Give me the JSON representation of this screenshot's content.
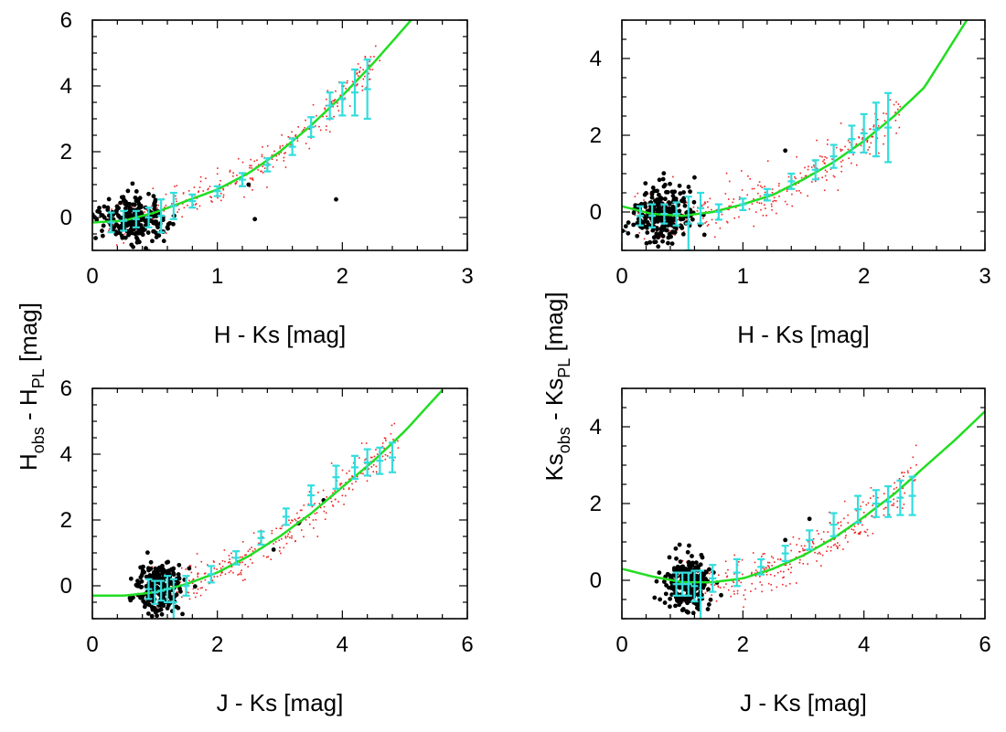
{
  "figure": {
    "ylabel_left": {
      "main1": "H",
      "sub1": "obs",
      "main2": " - H",
      "sub2": "PL",
      "main3": " [mag]"
    },
    "ylabel_right": {
      "main1": "Ks",
      "sub1": "obs",
      "main2": " - Ks",
      "sub2": "PL",
      "main3": " [mag]"
    }
  },
  "colors": {
    "frame": "#000000",
    "fit_curve": "#22dd22",
    "binned_errorbars": "#33dddd",
    "red_points": "#ee2222",
    "black_points": "#000000"
  },
  "chart_data": [
    {
      "id": "top-left",
      "type": "scatter",
      "xlabel": "H - Ks [mag]",
      "ylabel": "H_obs - H_PL [mag]",
      "xlim": [
        0,
        3
      ],
      "ylim": [
        -1,
        6
      ],
      "xticks": [
        0,
        1,
        2,
        3
      ],
      "yticks": [
        0,
        2,
        4,
        6
      ],
      "tick_labels_x": [
        "0",
        "1",
        "2",
        "3"
      ],
      "tick_labels_y": [
        "0",
        "2",
        "4",
        "6"
      ],
      "grid": false,
      "fit_curve": {
        "x": [
          0,
          0.25,
          0.5,
          0.75,
          1.0,
          1.25,
          1.5,
          1.75,
          2.0,
          2.25,
          2.55
        ],
        "y": [
          -0.15,
          -0.1,
          0.15,
          0.5,
          0.85,
          1.35,
          2.0,
          2.8,
          3.7,
          4.7,
          6.0
        ]
      },
      "binned": {
        "x": [
          0.15,
          0.25,
          0.35,
          0.45,
          0.55,
          0.65,
          0.8,
          1.0,
          1.2,
          1.4,
          1.6,
          1.75,
          1.9,
          2.0,
          2.1,
          2.2
        ],
        "y": [
          -0.15,
          -0.1,
          -0.05,
          0.0,
          0.05,
          0.35,
          0.5,
          0.8,
          1.15,
          1.6,
          2.15,
          2.75,
          3.4,
          3.6,
          3.8,
          3.9
        ],
        "err": [
          0.3,
          0.3,
          0.25,
          0.3,
          0.5,
          0.4,
          0.2,
          0.15,
          0.2,
          0.2,
          0.25,
          0.3,
          0.4,
          0.5,
          0.7,
          0.9
        ]
      },
      "red_scatter": {
        "x_range": [
          0.1,
          2.3
        ],
        "spread": 0.35,
        "count": 320
      },
      "black_cluster": {
        "x_range": [
          0.1,
          0.55
        ],
        "y_range": [
          -1.0,
          0.7
        ],
        "count": 240
      },
      "black_outliers": {
        "x": [
          1.3,
          1.95,
          1.25,
          0.6
        ],
        "y": [
          -0.05,
          0.55,
          1.0,
          -0.3
        ]
      }
    },
    {
      "id": "top-right",
      "type": "scatter",
      "xlabel": "H - Ks [mag]",
      "ylabel": "Ks_obs - Ks_PL [mag]",
      "xlim": [
        0,
        3
      ],
      "ylim": [
        -1,
        5
      ],
      "xticks": [
        0,
        1,
        2,
        3
      ],
      "yticks": [
        0,
        2,
        4
      ],
      "tick_labels_x": [
        "0",
        "1",
        "2",
        "3"
      ],
      "tick_labels_y": [
        "0",
        "2",
        "4"
      ],
      "grid": false,
      "fit_curve": {
        "x": [
          0,
          0.25,
          0.5,
          0.75,
          1.0,
          1.25,
          1.5,
          1.75,
          2.0,
          2.25,
          2.5,
          2.85
        ],
        "y": [
          0.15,
          -0.05,
          -0.1,
          0.0,
          0.2,
          0.45,
          0.85,
          1.3,
          1.85,
          2.5,
          3.25,
          5.0
        ]
      },
      "binned": {
        "x": [
          0.15,
          0.25,
          0.35,
          0.45,
          0.55,
          0.65,
          0.8,
          1.0,
          1.2,
          1.4,
          1.6,
          1.75,
          1.9,
          2.0,
          2.1,
          2.2
        ],
        "y": [
          -0.1,
          -0.1,
          -0.05,
          -0.05,
          -0.3,
          0.1,
          0.0,
          0.2,
          0.45,
          0.8,
          1.1,
          1.45,
          1.9,
          2.05,
          2.15,
          2.2
        ],
        "err": [
          0.25,
          0.3,
          0.25,
          0.3,
          0.7,
          0.4,
          0.2,
          0.15,
          0.15,
          0.2,
          0.25,
          0.3,
          0.35,
          0.5,
          0.7,
          0.9
        ]
      },
      "red_scatter": {
        "x_range": [
          0.1,
          2.3
        ],
        "spread": 0.35,
        "count": 320
      },
      "black_cluster": {
        "x_range": [
          0.1,
          0.55
        ],
        "y_range": [
          -1.0,
          0.7
        ],
        "count": 240
      },
      "black_outliers": {
        "x": [
          1.35,
          0.6,
          0.3
        ],
        "y": [
          1.6,
          0.9,
          -0.9
        ]
      }
    },
    {
      "id": "bottom-left",
      "type": "scatter",
      "xlabel": "J - Ks [mag]",
      "ylabel": "H_obs - H_PL [mag]",
      "xlim": [
        0,
        6
      ],
      "ylim": [
        -1,
        6
      ],
      "xticks": [
        0,
        2,
        4,
        6
      ],
      "yticks": [
        0,
        2,
        4,
        6
      ],
      "tick_labels_x": [
        "0",
        "2",
        "4",
        "6"
      ],
      "tick_labels_y": [
        "0",
        "2",
        "4",
        "6"
      ],
      "grid": false,
      "fit_curve": {
        "x": [
          0,
          0.5,
          1.0,
          1.5,
          2.0,
          2.5,
          3.0,
          3.5,
          4.0,
          4.5,
          5.0,
          5.6
        ],
        "y": [
          -0.3,
          -0.3,
          -0.2,
          0.05,
          0.4,
          0.9,
          1.5,
          2.2,
          3.0,
          3.8,
          4.7,
          5.95
        ]
      },
      "binned": {
        "x": [
          0.9,
          1.0,
          1.1,
          1.2,
          1.3,
          1.5,
          1.9,
          2.3,
          2.7,
          3.1,
          3.5,
          3.9,
          4.2,
          4.4,
          4.6,
          4.8
        ],
        "y": [
          -0.1,
          -0.2,
          -0.15,
          -0.1,
          -0.5,
          0.0,
          0.35,
          0.85,
          1.45,
          2.1,
          2.75,
          3.3,
          3.6,
          3.75,
          3.8,
          3.9
        ],
        "err": [
          0.3,
          0.35,
          0.3,
          0.4,
          0.7,
          0.3,
          0.25,
          0.2,
          0.2,
          0.25,
          0.3,
          0.35,
          0.35,
          0.4,
          0.4,
          0.45
        ]
      },
      "red_scatter": {
        "x_range": [
          0.9,
          4.9
        ],
        "spread": 0.35,
        "count": 320
      },
      "black_cluster": {
        "x_range": [
          0.75,
          1.4
        ],
        "y_range": [
          -1.0,
          0.75
        ],
        "count": 240
      },
      "black_outliers": {
        "x": [
          2.9,
          3.3,
          3.7
        ],
        "y": [
          1.1,
          1.9,
          2.6
        ]
      }
    },
    {
      "id": "bottom-right",
      "type": "scatter",
      "xlabel": "J - Ks [mag]",
      "ylabel": "Ks_obs - Ks_PL [mag]",
      "xlim": [
        0,
        6
      ],
      "ylim": [
        -1,
        5
      ],
      "xticks": [
        0,
        2,
        4,
        6
      ],
      "yticks": [
        0,
        2,
        4
      ],
      "tick_labels_x": [
        "0",
        "2",
        "4",
        "6"
      ],
      "tick_labels_y": [
        "0",
        "2",
        "4"
      ],
      "grid": false,
      "fit_curve": {
        "x": [
          0,
          0.5,
          1.0,
          1.5,
          2.0,
          2.5,
          3.0,
          3.5,
          4.0,
          4.5,
          5.0,
          5.5,
          6.0
        ],
        "y": [
          0.3,
          0.1,
          -0.05,
          -0.05,
          0.05,
          0.3,
          0.65,
          1.1,
          1.65,
          2.25,
          2.95,
          3.65,
          4.4
        ]
      },
      "binned": {
        "x": [
          0.9,
          1.0,
          1.1,
          1.2,
          1.3,
          1.5,
          1.9,
          2.3,
          2.7,
          3.1,
          3.5,
          3.9,
          4.2,
          4.4,
          4.6,
          4.8
        ],
        "y": [
          -0.1,
          -0.1,
          -0.1,
          -0.15,
          -0.45,
          0.05,
          0.2,
          0.35,
          0.7,
          1.05,
          1.45,
          1.85,
          2.0,
          2.05,
          2.15,
          2.2
        ],
        "err": [
          0.3,
          0.3,
          0.3,
          0.4,
          0.7,
          0.35,
          0.35,
          0.2,
          0.2,
          0.25,
          0.3,
          0.35,
          0.35,
          0.4,
          0.45,
          0.5
        ]
      },
      "red_scatter": {
        "x_range": [
          0.9,
          4.9
        ],
        "spread": 0.35,
        "count": 320
      },
      "black_cluster": {
        "x_range": [
          0.75,
          1.4
        ],
        "y_range": [
          -1.0,
          0.7
        ],
        "count": 240
      },
      "black_outliers": {
        "x": [
          2.7,
          3.1
        ],
        "y": [
          1.05,
          1.6
        ]
      }
    }
  ]
}
